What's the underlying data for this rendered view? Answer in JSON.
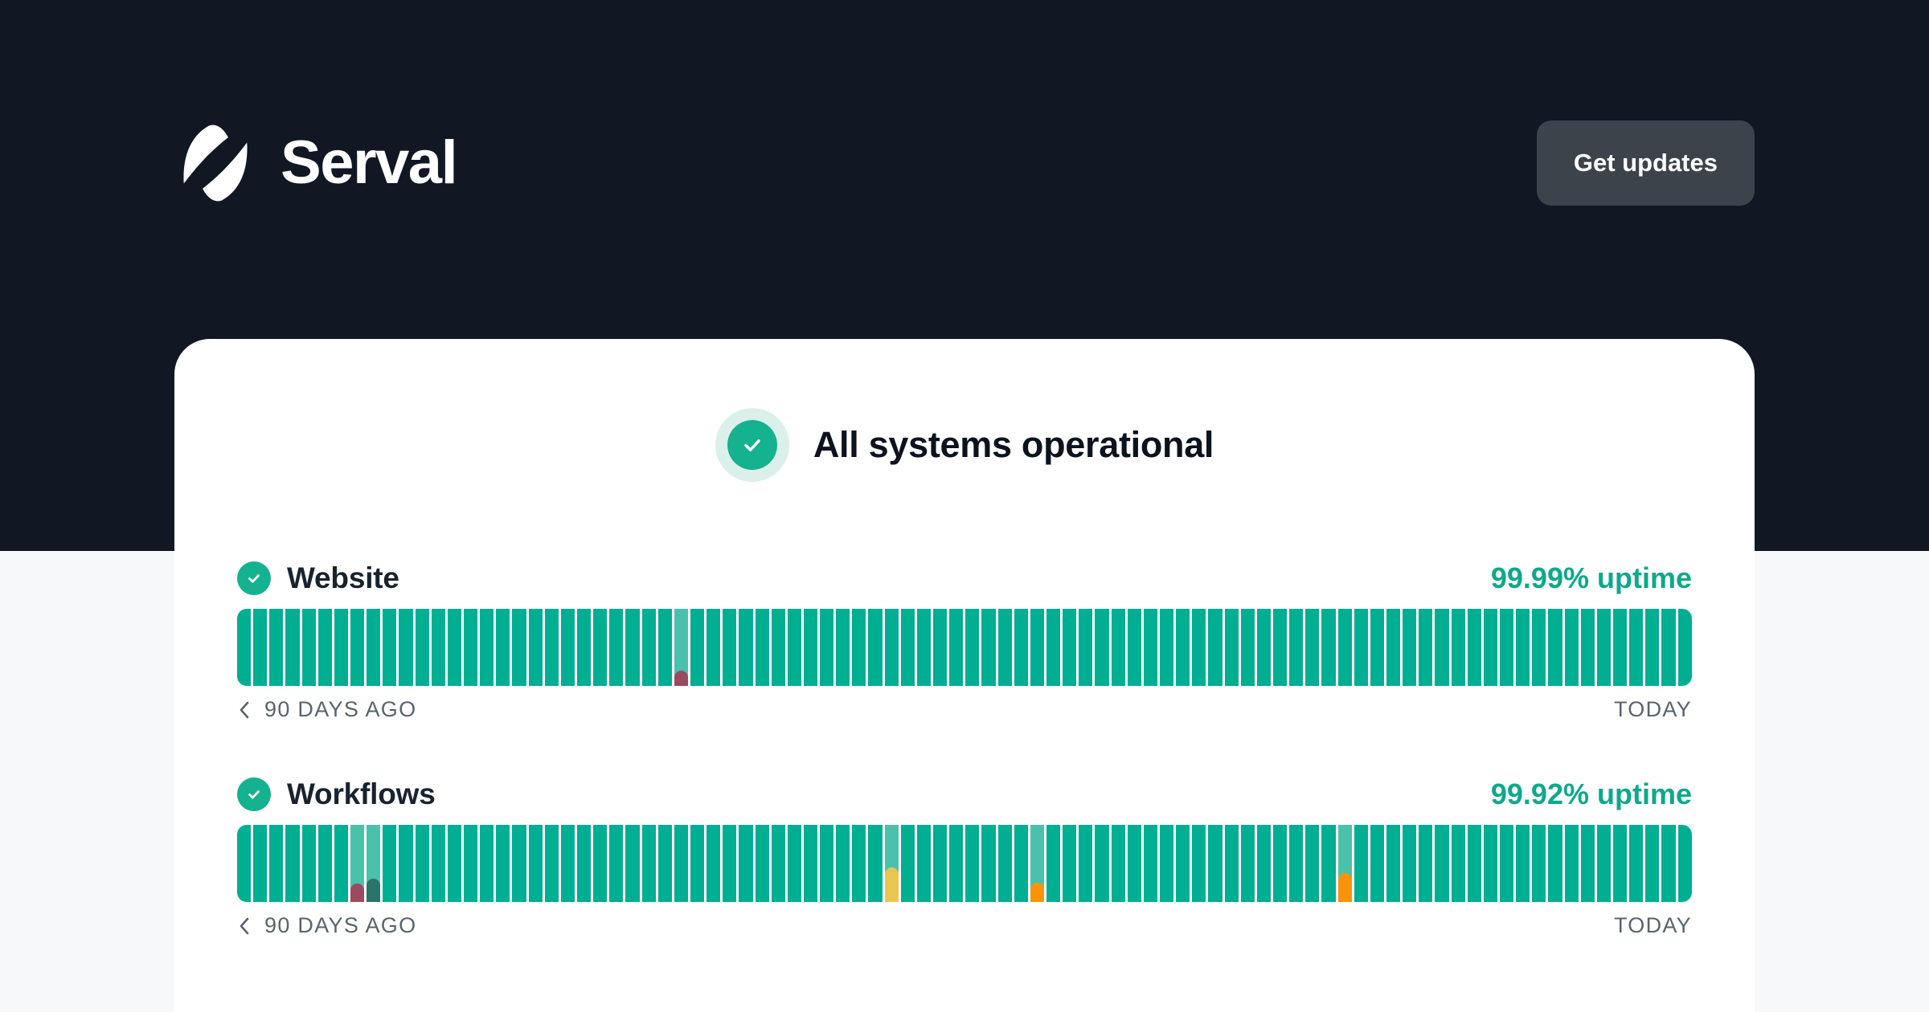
{
  "header": {
    "brand": "Serval",
    "get_updates_label": "Get updates"
  },
  "status": {
    "label": "All systems operational"
  },
  "services": [
    {
      "name": "Website",
      "uptime_label": "99.99% uptime",
      "days": 90,
      "range_start": "90 DAYS AGO",
      "range_end": "TODAY",
      "incidents": [
        {
          "day": 27,
          "severity": "major",
          "fraction": 0.2
        }
      ]
    },
    {
      "name": "Workflows",
      "uptime_label": "99.92% uptime",
      "days": 90,
      "range_start": "90 DAYS AGO",
      "range_end": "TODAY",
      "incidents": [
        {
          "day": 7,
          "severity": "major",
          "fraction": 0.24
        },
        {
          "day": 8,
          "severity": "maintenance",
          "fraction": 0.3
        },
        {
          "day": 40,
          "severity": "minor",
          "fraction": 0.45
        },
        {
          "day": 49,
          "severity": "partial",
          "fraction": 0.25
        },
        {
          "day": 68,
          "severity": "partial",
          "fraction": 0.38
        }
      ]
    }
  ],
  "colors": {
    "header-bg": "#111723",
    "page-bg": "#f7f8fa",
    "button-bg": "#3d434b",
    "badge-ring": "#dbf0ea",
    "badge-green": "#14b28e",
    "uptime-text": "#0da98a",
    "operational": "#00ae92",
    "incident-day": "#4ac1ab",
    "major": "#9b4a5f",
    "maintenance": "#2b746b",
    "minor": "#e9c64f",
    "partial": "#f99307"
  },
  "icons": {
    "brand_mark": "serval-logo-icon",
    "status_check": "check-icon ✓",
    "service_check": "check-icon ✓",
    "history_nav": "chevron-left-icon ‹"
  }
}
